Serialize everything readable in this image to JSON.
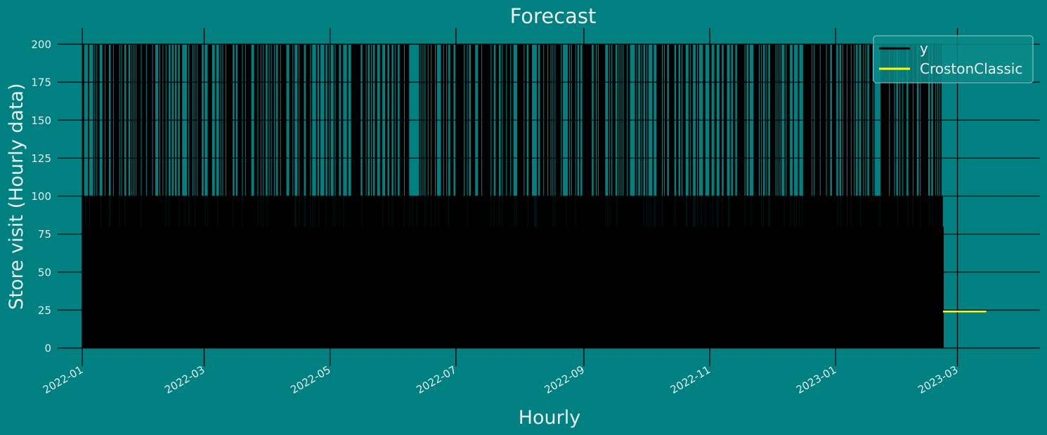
{
  "chart_data": {
    "type": "line",
    "title": "Forecast",
    "xlabel": "Hourly",
    "ylabel": "Store visit (Hourly data)",
    "x_ticks": [
      "2022-01",
      "2022-03",
      "2022-05",
      "2022-07",
      "2022-09",
      "2022-11",
      "2023-01",
      "2023-03"
    ],
    "y_ticks": [
      0,
      25,
      50,
      75,
      100,
      125,
      150,
      175,
      200
    ],
    "xlim": [
      "2021-12-20",
      "2023-04-10"
    ],
    "ylim": [
      -10,
      210
    ],
    "grid": true,
    "legend_position": "top-right",
    "series": [
      {
        "name": "y",
        "color": "#000000",
        "start": "2022-01-01",
        "end": "2023-02-22",
        "value_range": [
          0,
          200
        ],
        "common_values": [
          0,
          20,
          40,
          60,
          80,
          100,
          200
        ],
        "description": "dense hourly series oscillating between 0 and ~200"
      },
      {
        "name": "CrostonClassic",
        "color": "#ffff00",
        "start": "2023-02-22",
        "end": "2023-03-15",
        "value": 24
      }
    ]
  }
}
